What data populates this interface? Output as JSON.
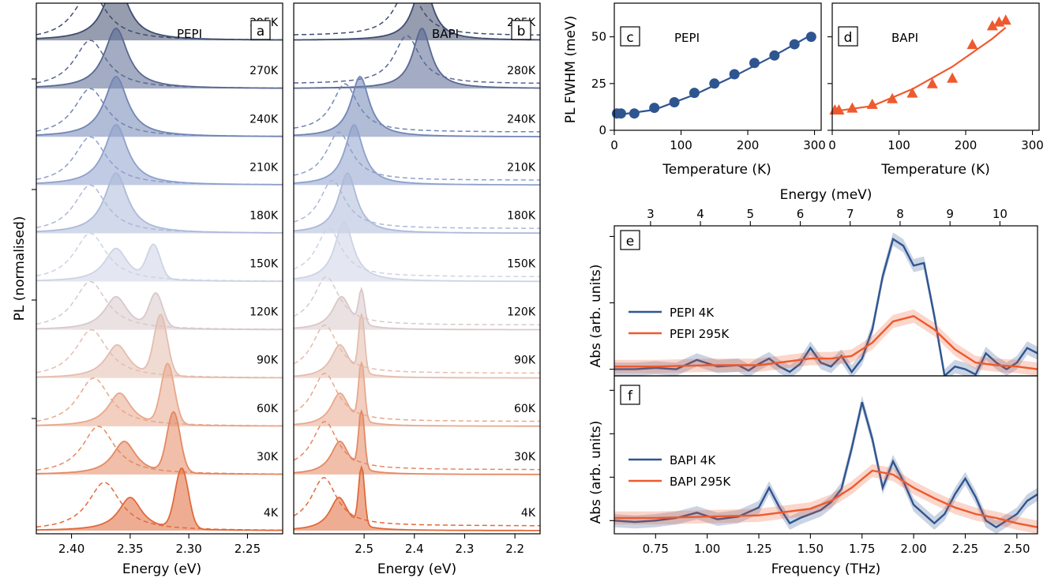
{
  "panels": {
    "a": {
      "letter": "a",
      "label": "PEPI",
      "xlabel": "Energy (eV)",
      "ylabel": "PL (normalised)",
      "xticks": [
        "2.40",
        "2.35",
        "2.30",
        "2.25"
      ]
    },
    "b": {
      "letter": "b",
      "label": "BAPI",
      "xlabel": "Energy (eV)",
      "xticks": [
        "2.5",
        "2.4",
        "2.3",
        "2.2"
      ]
    },
    "c": {
      "letter": "c",
      "label": "PEPI",
      "xlabel": "Temperature (K)",
      "ylabel": "PL FWHM (meV)",
      "xticks": [
        "0",
        "100",
        "200",
        "300"
      ],
      "yticks": [
        "0",
        "25",
        "50"
      ]
    },
    "d": {
      "letter": "d",
      "label": "BAPI",
      "xlabel": "Temperature (K)",
      "xticks": [
        "0",
        "100",
        "200",
        "300"
      ]
    },
    "e": {
      "letter": "e",
      "ylabel": "Abs (arb. units)",
      "top_xlabel": "Energy (meV)",
      "top_xticks": [
        "3",
        "4",
        "5",
        "6",
        "7",
        "8",
        "9",
        "10"
      ],
      "legend": [
        "PEPI 4K",
        "PEPI 295K"
      ]
    },
    "f": {
      "letter": "f",
      "ylabel": "Abs (arb. units)",
      "xlabel": "Frequency (THz)",
      "xticks": [
        "0.75",
        "1.00",
        "1.25",
        "1.50",
        "1.75",
        "2.00",
        "2.25",
        "2.50"
      ],
      "legend": [
        "BAPI 4K",
        "BAPI 295K"
      ]
    }
  },
  "colors": {
    "pepi": "#2f5590",
    "bapi_accent": "#ee5a2e",
    "temp_scale": [
      "#3f4c6e",
      "#7e93c6",
      "#cdd3e6",
      "#eab8a0",
      "#e06a3a"
    ]
  },
  "chart_data": [
    {
      "panel": "a",
      "type": "line",
      "title": "PEPI",
      "xlabel": "Energy (eV)",
      "ylabel": "PL (normalised)",
      "xlim": [
        2.43,
        2.22
      ],
      "x_reversed": true,
      "temperatures": [
        "295K",
        "270K",
        "240K",
        "210K",
        "180K",
        "150K",
        "120K",
        "90K",
        "60K",
        "30K",
        "4K"
      ],
      "peaks": [
        {
          "T": "295K",
          "main_eV": 2.362
        },
        {
          "T": "270K",
          "main_eV": 2.362
        },
        {
          "T": "240K",
          "main_eV": 2.362
        },
        {
          "T": "210K",
          "main_eV": 2.362
        },
        {
          "T": "180K",
          "main_eV": 2.362
        },
        {
          "T": "150K",
          "main_eV": 2.362,
          "second_eV": 2.33
        },
        {
          "T": "120K",
          "main_eV": 2.362,
          "second_eV": 2.328
        },
        {
          "T": "90K",
          "main_eV": 2.361,
          "second_eV": 2.324
        },
        {
          "T": "60K",
          "main_eV": 2.359,
          "second_eV": 2.318
        },
        {
          "T": "30K",
          "main_eV": 2.355,
          "second_eV": 2.313
        },
        {
          "T": "4K",
          "main_eV": 2.35,
          "second_eV": 2.306
        }
      ]
    },
    {
      "panel": "b",
      "type": "line",
      "title": "BAPI",
      "xlabel": "Energy (eV)",
      "xlim": [
        2.64,
        2.15
      ],
      "x_reversed": true,
      "temperatures": [
        "295K",
        "280K",
        "240K",
        "210K",
        "180K",
        "150K",
        "120K",
        "90K",
        "60K",
        "30K",
        "4K"
      ],
      "peaks": [
        {
          "T": "295K",
          "main_eV": 2.383
        },
        {
          "T": "280K",
          "main_eV": 2.385
        },
        {
          "T": "240K",
          "main_eV": 2.508
        },
        {
          "T": "210K",
          "main_eV": 2.52
        },
        {
          "T": "180K",
          "main_eV": 2.533
        },
        {
          "T": "150K",
          "main_eV": 2.54
        },
        {
          "T": "120K",
          "main_eV": 2.545,
          "second_eV": 2.505
        },
        {
          "T": "90K",
          "main_eV": 2.548,
          "second_eV": 2.505
        },
        {
          "T": "60K",
          "main_eV": 2.548,
          "second_eV": 2.505
        },
        {
          "T": "30K",
          "main_eV": 2.548,
          "second_eV": 2.505
        },
        {
          "T": "4K",
          "main_eV": 2.55,
          "second_eV": 2.505
        }
      ]
    },
    {
      "panel": "c",
      "type": "scatter",
      "title": "PEPI",
      "xlabel": "Temperature (K)",
      "ylabel": "PL FWHM (meV)",
      "xlim": [
        0,
        310
      ],
      "ylim": [
        0,
        68
      ],
      "x": [
        4,
        10,
        30,
        60,
        90,
        120,
        150,
        180,
        210,
        240,
        270,
        295
      ],
      "y": [
        9,
        9,
        9,
        12,
        15,
        20,
        25,
        30,
        36,
        40,
        46,
        50
      ],
      "fit": [
        [
          0,
          8
        ],
        [
          60,
          11
        ],
        [
          120,
          19
        ],
        [
          180,
          29
        ],
        [
          240,
          40
        ],
        [
          295,
          51
        ]
      ]
    },
    {
      "panel": "d",
      "type": "scatter",
      "title": "BAPI",
      "xlabel": "Temperature (K)",
      "xlim": [
        0,
        310
      ],
      "ylim": [
        0,
        68
      ],
      "x": [
        4,
        10,
        30,
        60,
        90,
        120,
        150,
        180,
        210,
        240,
        250,
        260
      ],
      "y": [
        11,
        11,
        12,
        14,
        17,
        20,
        25,
        28,
        46,
        56,
        58,
        59
      ],
      "fit": [
        [
          0,
          10
        ],
        [
          60,
          13
        ],
        [
          120,
          22
        ],
        [
          180,
          34
        ],
        [
          240,
          49
        ],
        [
          260,
          55
        ]
      ]
    },
    {
      "panel": "e",
      "type": "line",
      "ylabel": "Abs (arb. units)",
      "xlim": [
        0.55,
        2.6
      ],
      "ylim": [
        -0.05,
        1.08
      ],
      "series": [
        {
          "name": "PEPI 4K",
          "x": [
            0.55,
            0.65,
            0.75,
            0.85,
            0.95,
            1.05,
            1.15,
            1.2,
            1.25,
            1.3,
            1.35,
            1.4,
            1.45,
            1.5,
            1.55,
            1.6,
            1.65,
            1.7,
            1.75,
            1.8,
            1.85,
            1.9,
            1.95,
            2.0,
            2.05,
            2.1,
            2.15,
            2.2,
            2.25,
            2.3,
            2.35,
            2.4,
            2.45,
            2.5,
            2.55,
            2.6
          ],
          "y": [
            0.0,
            0.0,
            0.01,
            0.0,
            0.07,
            0.02,
            0.03,
            -0.01,
            0.04,
            0.08,
            0.02,
            -0.02,
            0.04,
            0.16,
            0.05,
            0.02,
            0.1,
            -0.02,
            0.08,
            0.3,
            0.7,
            0.98,
            0.93,
            0.78,
            0.8,
            0.4,
            -0.05,
            0.02,
            0.0,
            -0.04,
            0.12,
            0.05,
            0.0,
            0.05,
            0.16,
            0.12
          ]
        },
        {
          "name": "PEPI 295K",
          "x": [
            0.55,
            0.75,
            1.0,
            1.25,
            1.5,
            1.6,
            1.7,
            1.8,
            1.9,
            2.0,
            2.1,
            2.2,
            2.3,
            2.4,
            2.5,
            2.6
          ],
          "y": [
            0.02,
            0.02,
            0.03,
            0.03,
            0.08,
            0.08,
            0.1,
            0.2,
            0.36,
            0.4,
            0.3,
            0.15,
            0.05,
            0.03,
            0.02,
            0.0
          ]
        }
      ]
    },
    {
      "panel": "f",
      "type": "line",
      "ylabel": "Abs (arb. units)",
      "xlabel": "Frequency (THz)",
      "xlim": [
        0.55,
        2.6
      ],
      "ylim": [
        -0.1,
        1.1
      ],
      "series": [
        {
          "name": "BAPI 4K",
          "x": [
            0.55,
            0.65,
            0.75,
            0.85,
            0.95,
            1.05,
            1.15,
            1.25,
            1.3,
            1.35,
            1.4,
            1.45,
            1.5,
            1.55,
            1.6,
            1.65,
            1.7,
            1.75,
            1.8,
            1.85,
            1.9,
            1.95,
            2.0,
            2.05,
            2.1,
            2.15,
            2.2,
            2.25,
            2.3,
            2.35,
            2.4,
            2.45,
            2.5,
            2.55,
            2.6
          ],
          "y": [
            0.0,
            -0.01,
            0.0,
            0.02,
            0.06,
            0.01,
            0.03,
            0.1,
            0.25,
            0.1,
            -0.02,
            0.02,
            0.05,
            0.08,
            0.14,
            0.24,
            0.55,
            0.9,
            0.62,
            0.25,
            0.45,
            0.3,
            0.12,
            0.05,
            -0.02,
            0.05,
            0.2,
            0.32,
            0.18,
            0.0,
            -0.05,
            0.0,
            0.05,
            0.15,
            0.2
          ]
        },
        {
          "name": "BAPI 295K",
          "x": [
            0.55,
            0.75,
            1.0,
            1.25,
            1.5,
            1.6,
            1.7,
            1.8,
            1.9,
            2.0,
            2.1,
            2.2,
            2.3,
            2.4,
            2.5,
            2.6
          ],
          "y": [
            0.02,
            0.02,
            0.03,
            0.04,
            0.09,
            0.15,
            0.25,
            0.38,
            0.35,
            0.25,
            0.17,
            0.1,
            0.05,
            0.02,
            -0.02,
            -0.05
          ]
        }
      ]
    }
  ]
}
